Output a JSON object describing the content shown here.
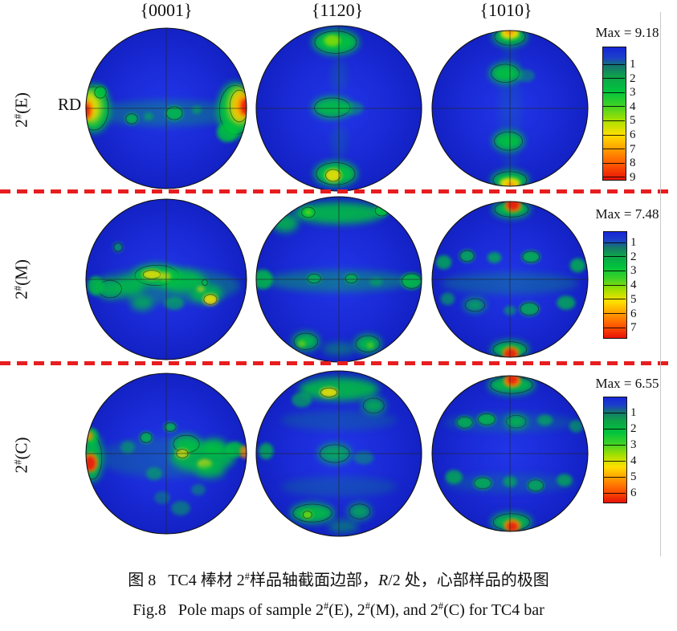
{
  "figure": {
    "rd_label": "RD",
    "col_headers": [
      {
        "pre": "{0001",
        "ov": "",
        "post": "}"
      },
      {
        "pre": "{11",
        "ov": "2",
        "post": "0}"
      },
      {
        "pre": "{10",
        "ov": "1",
        "post": "0}"
      }
    ],
    "rows": [
      {
        "label_pre": "2",
        "label_sup": "#",
        "label_post": "(E)",
        "max_label": "Max = 9.18",
        "max_value": 9.18,
        "ticks": [
          1,
          2,
          3,
          4,
          5,
          6,
          7,
          8,
          9
        ]
      },
      {
        "label_pre": "2",
        "label_sup": "#",
        "label_post": "(M)",
        "max_label": "Max = 7.48",
        "max_value": 7.48,
        "ticks": [
          1,
          2,
          3,
          4,
          5,
          6,
          7
        ]
      },
      {
        "label_pre": "2",
        "label_sup": "#",
        "label_post": "(C)",
        "max_label": "Max = 6.55",
        "max_value": 6.55,
        "ticks": [
          1,
          2,
          3,
          4,
          5,
          6
        ]
      }
    ],
    "caption_cn": [
      {
        "t": "图 8   TC4 棒材 2"
      },
      {
        "t": "#",
        "sup": true
      },
      {
        "t": "样品轴截面边部，"
      },
      {
        "t": "R",
        "i": true
      },
      {
        "t": "/2 处，心部样品的极图"
      }
    ],
    "caption_en": [
      {
        "t": "Fig.8   Pole maps of sample 2"
      },
      {
        "t": "#",
        "sup": true
      },
      {
        "t": "(E), 2"
      },
      {
        "t": "#",
        "sup": true
      },
      {
        "t": "(M), and 2"
      },
      {
        "t": "#",
        "sup": true
      },
      {
        "t": "(C) for TC4 bar"
      }
    ]
  },
  "colors": {
    "pole_bg_center": "#2136e8",
    "pole_bg_mid": "#1a2ad6",
    "pole_bg_edge": "#1322c4",
    "G": "#00c33e",
    "B": "#8fdf00",
    "Y": "#ffe000",
    "O": "#ff8c00",
    "R": "#e81d10",
    "dash_red": "#e71d1f",
    "contour": "#1a1a1a"
  },
  "pole_figures": [
    {
      "sample": "2#(E)",
      "plane": "{0001}",
      "blobs": [
        [
          0,
          6,
          92,
          16,
          "G",
          0.3,
          0
        ],
        [
          -90,
          0,
          20,
          30,
          "G",
          0.95,
          1
        ],
        [
          -93,
          -2,
          12,
          20,
          "Y",
          0.85,
          0
        ],
        [
          -99,
          2,
          8,
          13,
          "O",
          0.9,
          0
        ],
        [
          -101,
          3,
          6,
          9,
          "R",
          0.95,
          0
        ],
        [
          -82,
          -20,
          8,
          8,
          "G",
          0.9,
          1
        ],
        [
          86,
          2,
          22,
          34,
          "G",
          0.95,
          1
        ],
        [
          91,
          -3,
          13,
          22,
          "Y",
          0.9,
          1
        ],
        [
          96,
          -3,
          9,
          15,
          "O",
          0.95,
          0
        ],
        [
          99,
          -2,
          6,
          10,
          "R",
          0.95,
          0
        ],
        [
          76,
          30,
          13,
          12,
          "G",
          0.85,
          0
        ],
        [
          10,
          6,
          11,
          9,
          "G",
          0.8,
          1
        ],
        [
          -43,
          13,
          8,
          7,
          "G",
          0.75,
          1
        ],
        [
          -22,
          10,
          6,
          5,
          "G",
          0.5,
          0
        ],
        [
          38,
          2,
          6,
          5,
          "G",
          0.5,
          0
        ]
      ]
    },
    {
      "sample": "2#(E)",
      "plane": "{112̅0}",
      "blobs": [
        [
          -4,
          -80,
          28,
          15,
          "G",
          0.95,
          1
        ],
        [
          -8,
          -82,
          10,
          7,
          "B",
          0.8,
          0
        ],
        [
          -8,
          -1,
          24,
          13,
          "G",
          0.9,
          1
        ],
        [
          18,
          0,
          12,
          8,
          "G",
          0.4,
          0
        ],
        [
          -4,
          79,
          26,
          15,
          "G",
          0.95,
          1
        ],
        [
          -7,
          81,
          10,
          8,
          "Y",
          0.85,
          1
        ],
        [
          0,
          -40,
          10,
          20,
          "G",
          0.15,
          0
        ],
        [
          0,
          40,
          10,
          20,
          "G",
          0.15,
          0
        ]
      ]
    },
    {
      "sample": "2#(E)",
      "plane": "{101̅0}",
      "blobs": [
        [
          0,
          -92,
          22,
          12,
          "G",
          0.95,
          1
        ],
        [
          0,
          -96,
          12,
          7,
          "Y",
          0.9,
          0
        ],
        [
          0,
          -99,
          6,
          4,
          "O",
          0.9,
          0
        ],
        [
          -6,
          -45,
          20,
          13,
          "G",
          0.95,
          1
        ],
        [
          20,
          -42,
          12,
          8,
          "G",
          0.4,
          0
        ],
        [
          -2,
          42,
          20,
          13,
          "G",
          0.95,
          1
        ],
        [
          0,
          92,
          24,
          12,
          "G",
          0.95,
          1
        ],
        [
          0,
          96,
          13,
          7,
          "Y",
          0.9,
          0
        ],
        [
          1,
          99,
          6,
          4,
          "O",
          0.85,
          0
        ],
        [
          0,
          0,
          14,
          90,
          "G",
          0.1,
          0
        ]
      ]
    },
    {
      "sample": "2#(M)",
      "plane": "{0001}",
      "blobs": [
        [
          0,
          8,
          92,
          22,
          "G",
          0.35,
          0
        ],
        [
          -12,
          -5,
          30,
          14,
          "G",
          0.9,
          1
        ],
        [
          20,
          2,
          28,
          14,
          "G",
          0.85,
          0
        ],
        [
          -45,
          8,
          18,
          12,
          "G",
          0.8,
          0
        ],
        [
          -70,
          12,
          16,
          12,
          "G",
          0.75,
          1
        ],
        [
          -88,
          8,
          10,
          12,
          "G",
          0.8,
          0
        ],
        [
          50,
          18,
          20,
          12,
          "G",
          0.8,
          0
        ],
        [
          -18,
          -6,
          12,
          6,
          "Y",
          0.8,
          1
        ],
        [
          -2,
          -4,
          8,
          5,
          "Y",
          0.6,
          0
        ],
        [
          55,
          25,
          9,
          7,
          "Y",
          0.85,
          1
        ],
        [
          43,
          12,
          5,
          4,
          "Y",
          0.5,
          0
        ],
        [
          -60,
          -40,
          6,
          6,
          "G",
          0.6,
          1
        ],
        [
          -30,
          30,
          14,
          9,
          "G",
          0.7,
          0
        ],
        [
          10,
          30,
          12,
          8,
          "G",
          0.55,
          0
        ],
        [
          48,
          4,
          4,
          4,
          "G",
          0.8,
          1
        ]
      ]
    },
    {
      "sample": "2#(M)",
      "plane": "{112̅0}",
      "blobs": [
        [
          0,
          -80,
          55,
          13,
          "G",
          0.85,
          0
        ],
        [
          -65,
          -68,
          16,
          11,
          "G",
          0.8,
          0
        ],
        [
          -37,
          -81,
          9,
          7,
          "G",
          0.9,
          1
        ],
        [
          52,
          -83,
          9,
          7,
          "G",
          0.9,
          1
        ],
        [
          -37,
          -81,
          4,
          3,
          "B",
          0.7,
          0
        ],
        [
          0,
          2,
          90,
          13,
          "G",
          0.4,
          0
        ],
        [
          -92,
          0,
          12,
          12,
          "G",
          0.8,
          0
        ],
        [
          88,
          2,
          13,
          10,
          "G",
          0.85,
          1
        ],
        [
          -30,
          -1,
          9,
          6,
          "G",
          0.7,
          1
        ],
        [
          15,
          -1,
          8,
          6,
          "G",
          0.7,
          1
        ],
        [
          45,
          3,
          8,
          5,
          "G",
          0.45,
          0
        ],
        [
          -40,
          75,
          16,
          11,
          "G",
          0.9,
          1
        ],
        [
          35,
          78,
          16,
          11,
          "G",
          0.9,
          1
        ],
        [
          -45,
          78,
          5,
          4,
          "B",
          0.6,
          0
        ],
        [
          38,
          80,
          4,
          4,
          "B",
          0.5,
          0
        ],
        [
          0,
          84,
          20,
          8,
          "G",
          0.4,
          0
        ]
      ]
    },
    {
      "sample": "2#(M)",
      "plane": "{101̅0}",
      "blobs": [
        [
          2,
          -90,
          24,
          11,
          "G",
          0.95,
          1
        ],
        [
          4,
          -94,
          11,
          8,
          "O",
          0.8,
          0
        ],
        [
          4,
          -96,
          8,
          7,
          "R",
          0.95,
          0
        ],
        [
          0,
          90,
          24,
          11,
          "G",
          0.95,
          1
        ],
        [
          1,
          94,
          11,
          8,
          "O",
          0.8,
          0
        ],
        [
          1,
          96,
          8,
          7,
          "R",
          0.9,
          0
        ],
        [
          -55,
          -30,
          10,
          8,
          "G",
          0.75,
          1
        ],
        [
          -20,
          -28,
          9,
          7,
          "G",
          0.7,
          0
        ],
        [
          27,
          -29,
          12,
          8,
          "G",
          0.8,
          1
        ],
        [
          -85,
          -22,
          10,
          9,
          "G",
          0.7,
          0
        ],
        [
          87,
          -18,
          10,
          9,
          "G",
          0.75,
          0
        ],
        [
          0,
          5,
          88,
          14,
          "G",
          0.25,
          0
        ],
        [
          -45,
          33,
          14,
          9,
          "G",
          0.75,
          1
        ],
        [
          25,
          38,
          13,
          9,
          "G",
          0.75,
          1
        ],
        [
          72,
          30,
          12,
          9,
          "G",
          0.7,
          0
        ],
        [
          -80,
          25,
          9,
          8,
          "G",
          0.55,
          0
        ],
        [
          0,
          40,
          8,
          6,
          "G",
          0.5,
          0
        ]
      ]
    },
    {
      "sample": "2#(C)",
      "plane": "{0001}",
      "blobs": [
        [
          0,
          5,
          85,
          25,
          "G",
          0.2,
          0
        ],
        [
          -92,
          5,
          13,
          30,
          "G",
          0.9,
          1
        ],
        [
          -94,
          11,
          9,
          12,
          "O",
          0.8,
          0
        ],
        [
          -95,
          12,
          7,
          9,
          "R",
          0.95,
          0
        ],
        [
          -93,
          -22,
          8,
          10,
          "G",
          0.85,
          0
        ],
        [
          -96,
          -22,
          5,
          6,
          "O",
          0.8,
          0
        ],
        [
          45,
          5,
          40,
          18,
          "G",
          0.8,
          0
        ],
        [
          25,
          -12,
          18,
          12,
          "G",
          0.85,
          1
        ],
        [
          60,
          -8,
          16,
          11,
          "G",
          0.8,
          0
        ],
        [
          85,
          -5,
          12,
          10,
          "G",
          0.85,
          0
        ],
        [
          97,
          -2,
          5,
          8,
          "O",
          0.8,
          0
        ],
        [
          20,
          0,
          8,
          6,
          "Y",
          0.7,
          1
        ],
        [
          48,
          13,
          9,
          6,
          "Y",
          0.65,
          0
        ],
        [
          55,
          22,
          18,
          9,
          "G",
          0.7,
          0
        ],
        [
          -25,
          -20,
          8,
          7,
          "G",
          0.8,
          1
        ],
        [
          5,
          -33,
          8,
          6,
          "G",
          0.8,
          1
        ],
        [
          -48,
          -8,
          9,
          8,
          "G",
          0.45,
          0
        ],
        [
          -15,
          25,
          10,
          8,
          "G",
          0.5,
          0
        ],
        [
          18,
          68,
          12,
          9,
          "G",
          0.45,
          0
        ],
        [
          -5,
          55,
          10,
          8,
          "G",
          0.35,
          0
        ],
        [
          40,
          45,
          9,
          7,
          "G",
          0.4,
          0
        ]
      ]
    },
    {
      "sample": "2#(C)",
      "plane": "{112̅0}",
      "blobs": [
        [
          0,
          -78,
          48,
          14,
          "G",
          0.85,
          0
        ],
        [
          -12,
          -74,
          11,
          6,
          "Y",
          0.85,
          1
        ],
        [
          42,
          -58,
          14,
          10,
          "G",
          0.8,
          1
        ],
        [
          -45,
          -65,
          12,
          9,
          "G",
          0.6,
          0
        ],
        [
          -5,
          0,
          20,
          12,
          "G",
          0.75,
          1
        ],
        [
          30,
          5,
          12,
          8,
          "G",
          0.4,
          0
        ],
        [
          -88,
          -3,
          9,
          10,
          "G",
          0.7,
          0
        ],
        [
          -32,
          72,
          26,
          12,
          "G",
          0.9,
          1
        ],
        [
          -38,
          74,
          6,
          5,
          "B",
          0.7,
          1
        ],
        [
          25,
          70,
          14,
          10,
          "G",
          0.75,
          1
        ],
        [
          5,
          88,
          18,
          8,
          "G",
          0.45,
          0
        ],
        [
          0,
          -40,
          70,
          12,
          "G",
          0.18,
          0
        ],
        [
          0,
          40,
          70,
          12,
          "G",
          0.18,
          0
        ]
      ]
    },
    {
      "sample": "2#(C)",
      "plane": "{101̅0}",
      "blobs": [
        [
          2,
          -88,
          30,
          12,
          "G",
          0.9,
          1
        ],
        [
          3,
          -93,
          11,
          8,
          "O",
          0.9,
          0
        ],
        [
          3,
          -95,
          7,
          6,
          "R",
          0.9,
          0
        ],
        [
          2,
          88,
          26,
          12,
          "G",
          0.9,
          1
        ],
        [
          3,
          92,
          11,
          8,
          "O",
          0.85,
          0
        ],
        [
          3,
          94,
          7,
          6,
          "R",
          0.9,
          0
        ],
        [
          -58,
          -40,
          11,
          8,
          "G",
          0.75,
          1
        ],
        [
          -30,
          -44,
          12,
          8,
          "G",
          0.8,
          1
        ],
        [
          8,
          -41,
          14,
          9,
          "G",
          0.85,
          1
        ],
        [
          45,
          -43,
          10,
          7,
          "G",
          0.6,
          0
        ],
        [
          85,
          -35,
          9,
          8,
          "G",
          0.55,
          0
        ],
        [
          0,
          -40,
          85,
          12,
          "G",
          0.2,
          0
        ],
        [
          -72,
          30,
          11,
          9,
          "G",
          0.7,
          0
        ],
        [
          -35,
          38,
          12,
          8,
          "G",
          0.75,
          1
        ],
        [
          0,
          36,
          9,
          7,
          "G",
          0.6,
          0
        ],
        [
          33,
          41,
          11,
          8,
          "G",
          0.7,
          1
        ],
        [
          70,
          34,
          10,
          8,
          "G",
          0.65,
          0
        ],
        [
          0,
          38,
          85,
          12,
          "G",
          0.18,
          0
        ]
      ]
    }
  ]
}
